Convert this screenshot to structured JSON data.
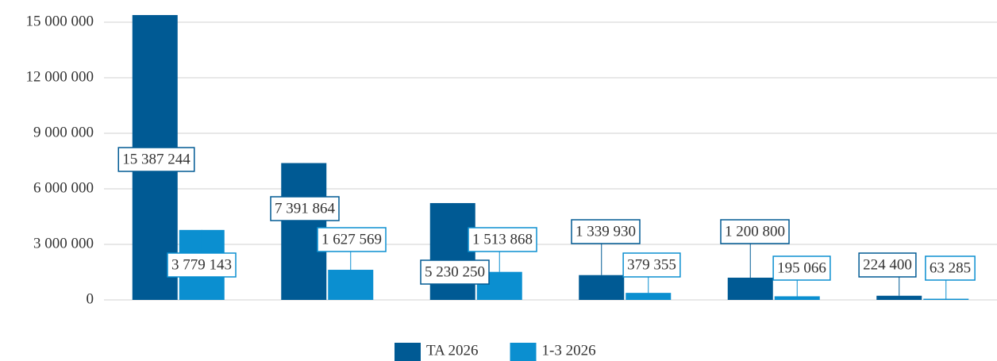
{
  "chart_data": {
    "type": "bar",
    "categories": [
      null,
      null,
      null,
      null,
      null,
      null
    ],
    "series": [
      {
        "name": "TA 2026",
        "color": "#005a94",
        "values": [
          15387244,
          7391864,
          5230250,
          1339930,
          1200800,
          224400
        ],
        "value_labels": [
          "15 387 244",
          "7 391 864",
          "5 230 250",
          "1 339 930",
          "1 200 800",
          "224 400"
        ]
      },
      {
        "name": "1-3 2026",
        "color": "#0b8fd0",
        "values": [
          3779143,
          1627569,
          1513868,
          379355,
          195066,
          63285
        ],
        "value_labels": [
          "3 779 143",
          "1 627 569",
          "1 513 868",
          "379 355",
          "195 066",
          "63 285"
        ]
      }
    ],
    "ylim": [
      0,
      15000000
    ],
    "yticks": [
      0,
      {
        "value": 3000000,
        "label": "3 000 000"
      },
      {
        "value": 6000000,
        "label": "6 000 000"
      },
      {
        "value": 9000000,
        "label": "9 000 000"
      },
      {
        "value": 12000000,
        "label": "12 000 000"
      },
      {
        "value": 15000000,
        "label": "15 000 000"
      }
    ],
    "grid": true,
    "legend": "bottom"
  }
}
